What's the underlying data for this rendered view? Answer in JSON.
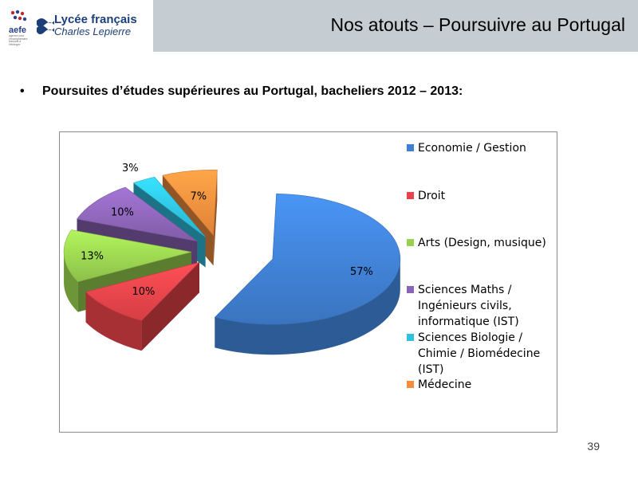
{
  "logo": {
    "agency": "aefe",
    "agency_small": "agence pour l'enseignement français à l'étranger",
    "school_line1": "Lycée français",
    "school_line2": "Charles Lepierre"
  },
  "header": {
    "title": "Nos atouts – Poursuivre au Portugal"
  },
  "bullet": {
    "symbol": "•",
    "text": "Poursuites d’études supérieures au Portugal, bacheliers 2012 – 2013:"
  },
  "chart_data": {
    "type": "pie",
    "title": "",
    "categories": [
      "Economie / Gestion",
      "Droit",
      "Arts (Design, musique)",
      "Sciences Maths / Ingénieurs civils, informatique (IST)",
      "Sciences Biologie / Chimie / Biomédecine (IST)",
      "Médecine"
    ],
    "values": [
      57,
      10,
      13,
      10,
      3,
      7
    ],
    "value_labels": [
      "57%",
      "10%",
      "13%",
      "10%",
      "3%",
      "7%"
    ],
    "colors": [
      "#3f7ed0",
      "#e8434a",
      "#98d04f",
      "#8b64b5",
      "#2ec0df",
      "#f38d3d"
    ],
    "legend_position": "right",
    "exploded": true,
    "style": "3d"
  },
  "legend": {
    "items": [
      {
        "label": "Economie / Gestion",
        "color": "#3f7ed0"
      },
      {
        "label": "Droit",
        "color": "#e8434a"
      },
      {
        "label": "Arts (Design, musique)",
        "color": "#98d04f"
      },
      {
        "label": "Sciences Maths / Ingénieurs civils, informatique (IST)",
        "color": "#8b64b5"
      },
      {
        "label": "Sciences Biologie / Chimie / Biomédecine (IST)",
        "color": "#2ec0df"
      },
      {
        "label": "Médecine",
        "color": "#f38d3d"
      }
    ]
  },
  "footer": {
    "page_number": "39"
  }
}
